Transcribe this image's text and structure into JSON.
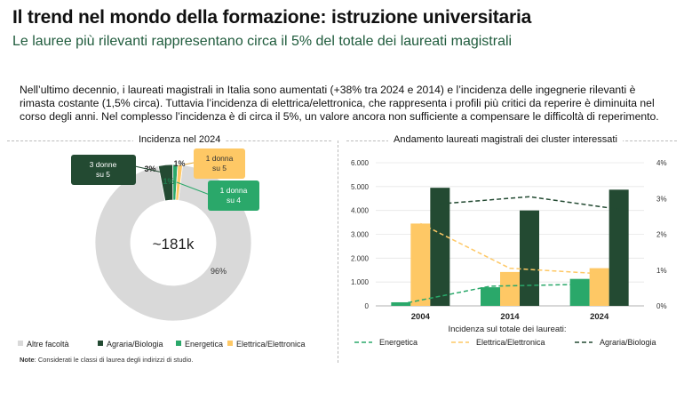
{
  "header": {
    "title": "Il trend nel mondo della formazione: istruzione universitaria",
    "subtitle": "Le lauree più rilevanti rappresentano circa il 5% del totale dei laureati magistrali"
  },
  "intro_text": "Nell’ultimo decennio, i laureati magistrali in Italia sono aumentati (+38% tra 2024 e 2014) e l’incidenza delle ingegnerie rilevanti è rimasta costante (1,5% circa). Tuttavia l’incidenza di elettrica/elettronica, che rappresenta i profili più critici da reperire è diminuita nel corso degli anni. Nel complesso l’incidenza è di circa il 5%, un valore ancora non sufficiente a compensare le difficoltà di reperimento.",
  "note": {
    "label": "Note",
    "text": ": Considerati le classi di laurea degli indirizzi di studio."
  },
  "colors": {
    "altre": "#d9d9d9",
    "agraria": "#234a32",
    "energetica": "#2aa86a",
    "elettrica": "#fec865"
  },
  "chart_data": [
    {
      "type": "pie",
      "title": "Incidenza nel 2024",
      "center_label": "~181k",
      "slices": [
        {
          "name": "Altre facoltà",
          "value": 96,
          "label": "96%",
          "color": "#d9d9d9"
        },
        {
          "name": "Agraria/Biologia",
          "value": 3,
          "label": "3%",
          "color": "#234a32"
        },
        {
          "name": "Energetica",
          "value": 1,
          "label": "1%",
          "color": "#2aa86a"
        },
        {
          "name": "Elettrica/Elettronica",
          "value": 1,
          "label": "1%",
          "color": "#fec865"
        }
      ],
      "callouts": [
        {
          "text": "3 donne su 5",
          "line1": "3 donne",
          "line2": "su 5",
          "series": "Agraria/Biologia",
          "color": "#234a32"
        },
        {
          "text": "1 donna su 5",
          "line1": "1 donna",
          "line2": "su 5",
          "series": "Elettrica/Elettronica",
          "color": "#fec865"
        },
        {
          "text": "1 donna su 4",
          "line1": "1 donna",
          "line2": "su 4",
          "series": "Energetica",
          "color": "#2aa86a"
        }
      ],
      "legend": [
        "Altre facoltà",
        "Agraria/Biologia",
        "Energetica",
        "Elettrica/Elettronica"
      ]
    },
    {
      "type": "bar",
      "title": "Andamento laureati magistrali dei cluster interessati",
      "categories": [
        "2004",
        "2014",
        "2024"
      ],
      "ylim": [
        0,
        6000
      ],
      "y_ticks": [
        "0",
        "1.000",
        "2.000",
        "3.000",
        "4.000",
        "5.000",
        "6.000"
      ],
      "y2lim": [
        0,
        4
      ],
      "y2_ticks": [
        "0%",
        "1%",
        "2%",
        "3%",
        "4%"
      ],
      "series": [
        {
          "name": "Energetica",
          "values": [
            150,
            780,
            1130
          ],
          "color": "#2aa86a"
        },
        {
          "name": "Elettrica/Elettronica",
          "values": [
            3450,
            1420,
            1580
          ],
          "color": "#fec865"
        },
        {
          "name": "Agraria/Biologia",
          "values": [
            4950,
            4000,
            4870
          ],
          "color": "#234a32"
        }
      ],
      "line_series_title": "Incidenza sul totale dei laureati:",
      "line_series": [
        {
          "name": "Energetica",
          "values": [
            0.05,
            0.55,
            0.6
          ],
          "color": "#2aa86a"
        },
        {
          "name": "Elettrica/Elettronica",
          "values": [
            2.3,
            1.05,
            0.9
          ],
          "color": "#fec865"
        },
        {
          "name": "Agraria/Biologia",
          "values": [
            2.85,
            3.05,
            2.7
          ],
          "color": "#234a32"
        }
      ]
    }
  ]
}
